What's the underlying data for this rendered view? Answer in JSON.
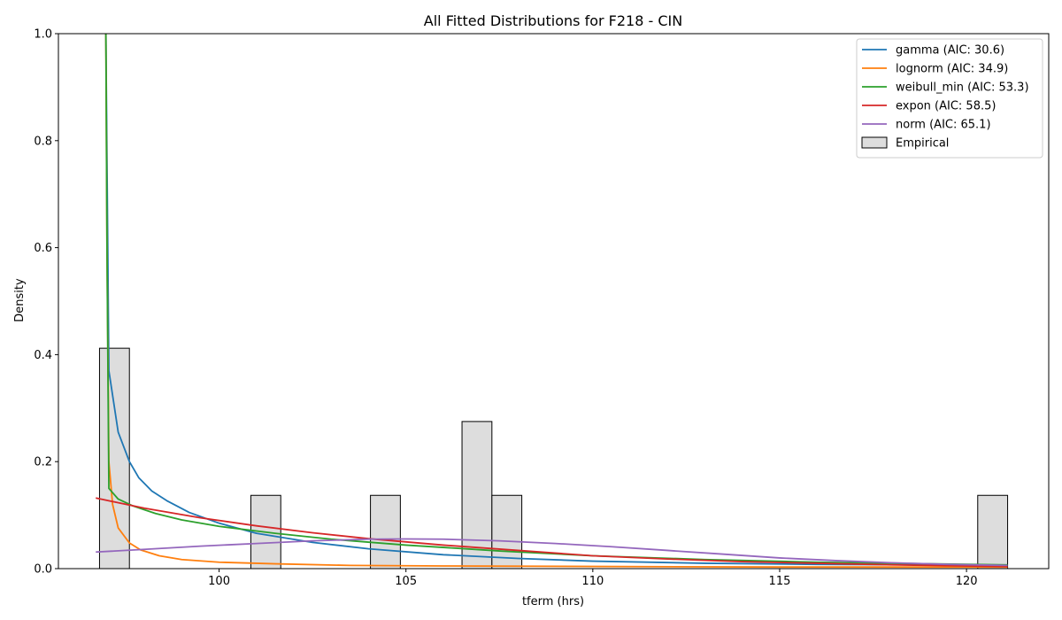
{
  "chart_data": {
    "type": "line",
    "title": "All Fitted Distributions for F218 - CIN",
    "xlabel": "tferm (hrs)",
    "ylabel": "Density",
    "xlim": [
      95.7,
      122.2
    ],
    "ylim": [
      0,
      1.0
    ],
    "xticks": [
      100,
      105,
      110,
      115,
      120
    ],
    "yticks": [
      0.0,
      0.2,
      0.4,
      0.6,
      0.8,
      1.0
    ],
    "legend_position": "top-right",
    "histogram": {
      "name": "Empirical",
      "color": "#dddddd",
      "edgecolor": "#000000",
      "bins": [
        {
          "x0": 96.8,
          "x1": 97.6,
          "value": 0.412
        },
        {
          "x0": 100.85,
          "x1": 101.65,
          "value": 0.137
        },
        {
          "x0": 104.05,
          "x1": 104.85,
          "value": 0.137
        },
        {
          "x0": 106.5,
          "x1": 107.3,
          "value": 0.275
        },
        {
          "x0": 107.3,
          "x1": 108.1,
          "value": 0.137
        },
        {
          "x0": 120.3,
          "x1": 121.1,
          "value": 0.137
        }
      ]
    },
    "series": [
      {
        "name": "gamma (AIC: 30.6)",
        "color": "#1f77b4",
        "x": [
          96.97,
          97.05,
          97.3,
          97.6,
          97.85,
          98.2,
          98.6,
          99.2,
          100.0,
          101.0,
          102.5,
          104.0,
          106.0,
          108.0,
          110.0,
          113.0,
          116.0,
          119.0,
          121.1
        ],
        "y": [
          1.0,
          0.37,
          0.255,
          0.2,
          0.17,
          0.145,
          0.127,
          0.105,
          0.085,
          0.066,
          0.049,
          0.037,
          0.026,
          0.019,
          0.014,
          0.01,
          0.008,
          0.007,
          0.006
        ]
      },
      {
        "name": "lognorm (AIC: 34.9)",
        "color": "#ff7f0e",
        "x": [
          96.97,
          97.0,
          97.05,
          97.15,
          97.3,
          97.6,
          97.9,
          98.4,
          99.0,
          100.0,
          101.5,
          103.5,
          106.0,
          110.0,
          115.0,
          121.1
        ],
        "y": [
          1.0,
          0.6,
          0.2,
          0.12,
          0.076,
          0.048,
          0.035,
          0.024,
          0.017,
          0.012,
          0.009,
          0.006,
          0.005,
          0.004,
          0.003,
          0.003
        ]
      },
      {
        "name": "weibull_min (AIC: 53.3)",
        "color": "#2ca02c",
        "x": [
          96.97,
          97.0,
          97.05,
          97.3,
          97.7,
          98.3,
          99.0,
          100.0,
          101.5,
          103.0,
          105.0,
          107.5,
          110.0,
          113.0,
          116.0,
          119.0,
          121.1
        ],
        "y": [
          1.0,
          0.6,
          0.15,
          0.13,
          0.117,
          0.103,
          0.091,
          0.079,
          0.066,
          0.055,
          0.044,
          0.033,
          0.024,
          0.017,
          0.012,
          0.009,
          0.007
        ]
      },
      {
        "name": "expon (AIC: 58.5)",
        "color": "#d62728",
        "x": [
          96.7,
          98.0,
          99.5,
          101.0,
          102.5,
          104.0,
          106.0,
          108.0,
          110.0,
          112.0,
          114.0,
          116.0,
          118.0,
          120.0,
          121.1
        ],
        "y": [
          0.132,
          0.113,
          0.095,
          0.08,
          0.067,
          0.056,
          0.044,
          0.034,
          0.024,
          0.018,
          0.013,
          0.01,
          0.007,
          0.005,
          0.004
        ]
      },
      {
        "name": "norm (AIC: 65.1)",
        "color": "#9467bd",
        "x": [
          96.7,
          98.0,
          99.5,
          101.0,
          102.5,
          104.0,
          105.0,
          106.0,
          107.5,
          109.0,
          110.5,
          112.0,
          113.5,
          115.0,
          116.5,
          118.0,
          119.5,
          121.1
        ],
        "y": [
          0.031,
          0.036,
          0.042,
          0.047,
          0.052,
          0.055,
          0.0555,
          0.055,
          0.052,
          0.047,
          0.041,
          0.034,
          0.027,
          0.02,
          0.015,
          0.011,
          0.008,
          0.006
        ]
      }
    ]
  }
}
